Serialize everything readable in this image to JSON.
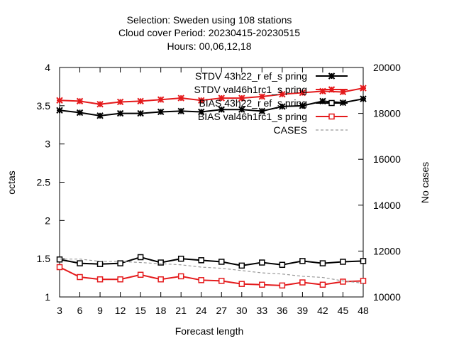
{
  "title_lines": [
    "Selection: Sweden using   108 stations",
    "Cloud cover   Period: 20230415-20230515",
    "Hours:  00,06,12,18"
  ],
  "chart_data": {
    "type": "line",
    "xlabel": "Forecast length",
    "ylabel_left": "octas",
    "ylabel_right": "No cases",
    "x": [
      3,
      6,
      9,
      12,
      15,
      18,
      21,
      24,
      27,
      30,
      33,
      36,
      39,
      42,
      45,
      48
    ],
    "xlim": [
      3,
      48
    ],
    "ylim_left": [
      1,
      4
    ],
    "yticks_left": [
      "1",
      "1.5",
      "2",
      "2.5",
      "3",
      "3.5",
      "4"
    ],
    "ylim_right": [
      10000,
      20000
    ],
    "yticks_right": [
      "10000",
      "12000",
      "14000",
      "16000",
      "18000",
      "20000"
    ],
    "grid": false,
    "legend_position": "top-right",
    "series": [
      {
        "name": "STDV 43h22_ref_spring",
        "legend_label": "STDV 43h22_r ef_s pring",
        "axis": "left",
        "color": "#000000",
        "marker": "x",
        "dash": "",
        "values": [
          3.44,
          3.41,
          3.37,
          3.4,
          3.4,
          3.42,
          3.43,
          3.42,
          3.45,
          3.45,
          3.43,
          3.49,
          3.5,
          3.56,
          3.54,
          3.59
        ]
      },
      {
        "name": "STDV val46h1rc1_spring",
        "legend_label": "STDV val46h1rc1_s pring",
        "axis": "left",
        "color": "#e41a1c",
        "marker": "x",
        "dash": "",
        "values": [
          3.57,
          3.56,
          3.52,
          3.55,
          3.56,
          3.58,
          3.6,
          3.57,
          3.6,
          3.6,
          3.62,
          3.65,
          3.67,
          3.69,
          3.68,
          3.73
        ]
      },
      {
        "name": "BIAS 43h22_ref_spring",
        "legend_label": "BIAS 43h22_r ef_s pring",
        "axis": "left",
        "color": "#000000",
        "marker": "square",
        "dash": "",
        "values": [
          1.49,
          1.44,
          1.43,
          1.44,
          1.52,
          1.45,
          1.5,
          1.48,
          1.46,
          1.41,
          1.45,
          1.42,
          1.47,
          1.44,
          1.46,
          1.47
        ]
      },
      {
        "name": "BIAS val46h1rc1_spring",
        "legend_label": "BIAS val46h1rc1_s pring",
        "axis": "left",
        "color": "#e41a1c",
        "marker": "square",
        "dash": "",
        "values": [
          1.39,
          1.26,
          1.23,
          1.23,
          1.29,
          1.23,
          1.27,
          1.22,
          1.21,
          1.17,
          1.16,
          1.15,
          1.19,
          1.16,
          1.2,
          1.21
        ]
      },
      {
        "name": "CASES",
        "legend_label": "CASES",
        "axis": "right",
        "color": "#999999",
        "marker": "none",
        "dash": "4,3",
        "values": [
          11650,
          11650,
          11550,
          11550,
          11500,
          11450,
          11400,
          11300,
          11250,
          11150,
          11050,
          11000,
          10900,
          10850,
          10700,
          10600
        ]
      }
    ]
  }
}
